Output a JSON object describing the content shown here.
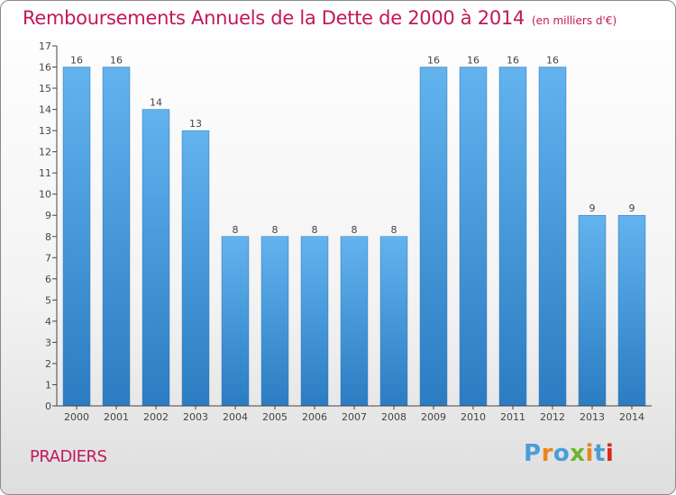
{
  "title": "Remboursements Annuels de la Dette de 2000 à 2014",
  "subtitle": "(en milliers d'€)",
  "place": "PRADIERS",
  "logo": {
    "letters": [
      "P",
      "r",
      "o",
      "x",
      "i",
      "t",
      "i"
    ],
    "colors": [
      "#4a9ed8",
      "#e8871e",
      "#4a9ed8",
      "#6cb52d",
      "#e8871e",
      "#4a9ed8",
      "#d9281e"
    ]
  },
  "colors": {
    "title": "#c2185b",
    "bar_light": "#62b3ee",
    "bar_dark": "#2b7cc2",
    "axis": "#444444"
  },
  "chart_data": {
    "type": "bar",
    "title": "Remboursements Annuels de la Dette de 2000 à 2014",
    "subtitle": "(en milliers d'€)",
    "xlabel": "",
    "ylabel": "",
    "ylim": [
      0,
      17
    ],
    "yticks": [
      0,
      1,
      2,
      3,
      4,
      5,
      6,
      7,
      8,
      9,
      10,
      11,
      12,
      13,
      14,
      15,
      16,
      17
    ],
    "grid": false,
    "categories": [
      "2000",
      "2001",
      "2002",
      "2003",
      "2004",
      "2005",
      "2006",
      "2007",
      "2008",
      "2009",
      "2010",
      "2011",
      "2012",
      "2013",
      "2014"
    ],
    "values": [
      16,
      16,
      14,
      13,
      8,
      8,
      8,
      8,
      8,
      16,
      16,
      16,
      16,
      9,
      9
    ]
  }
}
